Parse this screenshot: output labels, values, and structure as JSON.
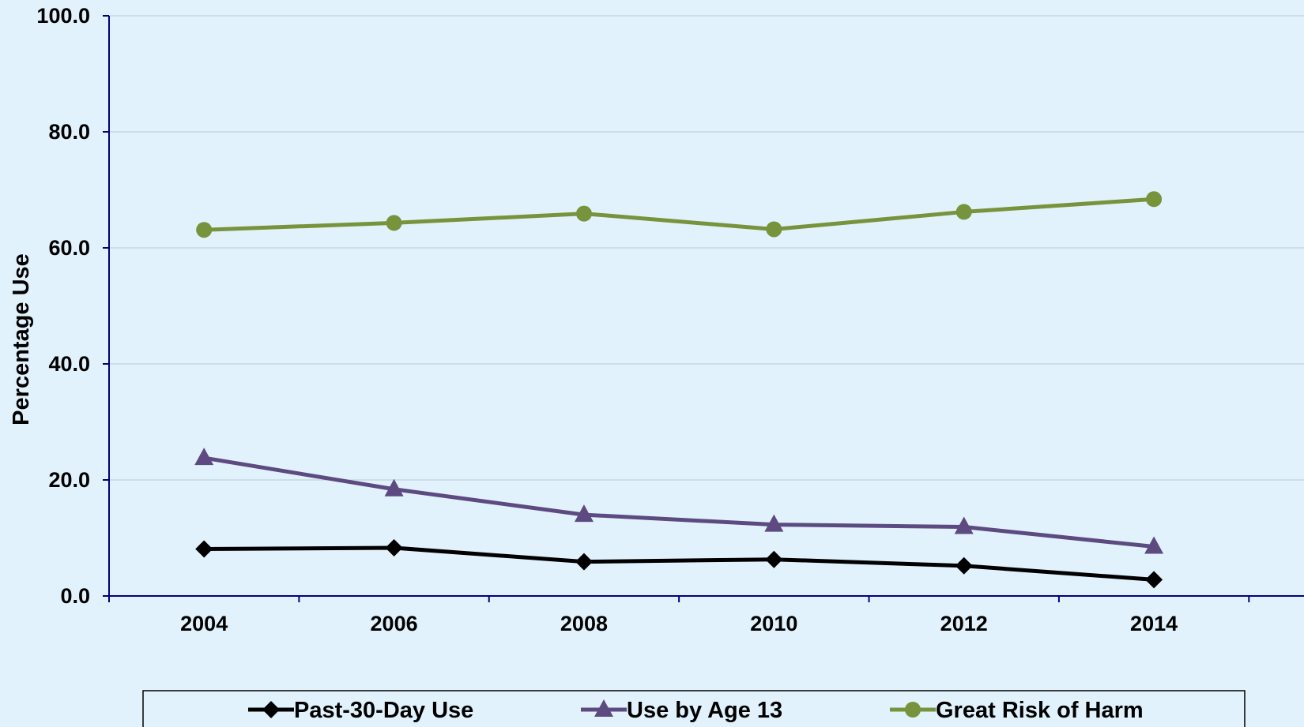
{
  "chart_data": {
    "type": "line",
    "title": "",
    "xlabel": "",
    "ylabel": "Percentage Use",
    "ylim": [
      0,
      100
    ],
    "yticks": [
      "0.0",
      "20.0",
      "40.0",
      "60.0",
      "80.0",
      "100.0"
    ],
    "categories": [
      "2004",
      "2006",
      "2008",
      "2010",
      "2012",
      "2014"
    ],
    "grid": true,
    "legend_position": "bottom",
    "series": [
      {
        "name": "Past-30-Day Use",
        "marker": "diamond",
        "color": "#000000",
        "values": [
          8.1,
          8.3,
          5.9,
          6.3,
          5.2,
          2.8
        ]
      },
      {
        "name": "Use by Age 13",
        "marker": "triangle",
        "color": "#5c4a80",
        "values": [
          23.8,
          18.4,
          14.0,
          12.3,
          11.9,
          8.5
        ]
      },
      {
        "name": "Great Risk of Harm",
        "marker": "circle",
        "color": "#77933c",
        "values": [
          63.1,
          64.3,
          65.9,
          63.2,
          66.2,
          68.4
        ]
      }
    ]
  }
}
